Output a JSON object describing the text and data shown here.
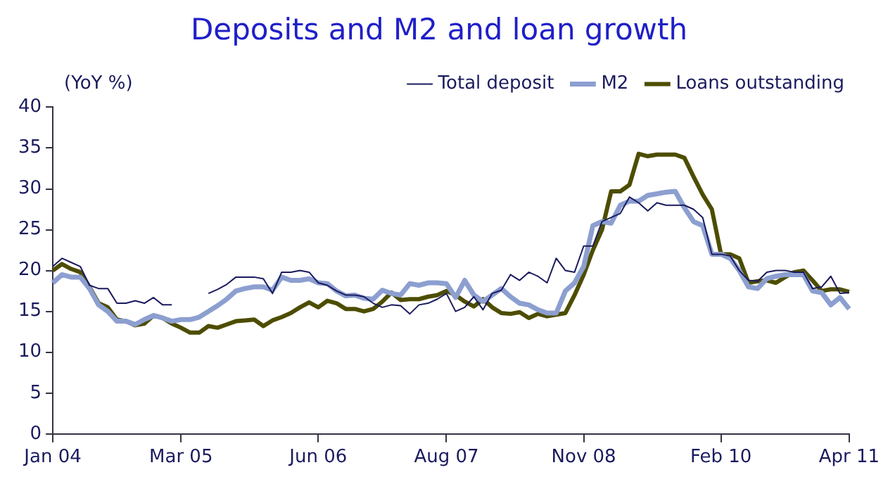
{
  "chart_data": {
    "type": "line",
    "title": "Deposits and M2 and loan growth",
    "ylabel": "(YoY %)",
    "categories": [
      "Jan 04",
      null,
      null,
      null,
      null,
      null,
      null,
      null,
      null,
      null,
      null,
      null,
      null,
      null,
      "Mar 05",
      null,
      null,
      null,
      null,
      null,
      null,
      null,
      null,
      null,
      null,
      null,
      null,
      null,
      null,
      "Jun 06",
      null,
      null,
      null,
      null,
      null,
      null,
      null,
      null,
      null,
      null,
      null,
      null,
      null,
      "Aug 07",
      null,
      null,
      null,
      null,
      null,
      null,
      null,
      null,
      null,
      null,
      null,
      null,
      null,
      null,
      "Nov 08",
      null,
      null,
      null,
      null,
      null,
      null,
      null,
      null,
      null,
      null,
      null,
      null,
      null,
      null,
      "Feb 10",
      null,
      null,
      null,
      null,
      null,
      null,
      null,
      null,
      null,
      null,
      null,
      null,
      null,
      "Apr 11"
    ],
    "series": [
      {
        "name": "Total deposit",
        "color": "#1a1a5e",
        "values": [
          20.5,
          21.5,
          21,
          20.5,
          18.2,
          17.8,
          17.8,
          16,
          16,
          16.3,
          16,
          16.7,
          15.8,
          15.8,
          null,
          null,
          null,
          17.2,
          17.7,
          18.3,
          19.2,
          19.2,
          19.2,
          19,
          17.2,
          19.8,
          19.8,
          20,
          19.8,
          18.5,
          18.2,
          17.5,
          17,
          17,
          16.8,
          16,
          15.5,
          15.8,
          15.7,
          14.7,
          15.8,
          16,
          16.5,
          17.2,
          15,
          15.5,
          16.8,
          15.2,
          17.2,
          17.6,
          19.5,
          18.8,
          19.8,
          19.3,
          18.5,
          21.5,
          20,
          19.8,
          23,
          23,
          26,
          26.5,
          27,
          29,
          28.3,
          27.3,
          28.3,
          28,
          28,
          28,
          27.5,
          26.5,
          22,
          22,
          21.8,
          20,
          18.8,
          18.7,
          19.8,
          20,
          20,
          19.8,
          19.8,
          17.8,
          18,
          19.3,
          17.2,
          17.3
        ]
      },
      {
        "name": "M2",
        "color": "#8c9fd0",
        "values": [
          18.5,
          19.5,
          19.2,
          19.2,
          17.8,
          15.8,
          15,
          13.8,
          13.8,
          13.4,
          14,
          14.5,
          14.2,
          13.8,
          14,
          14,
          14.3,
          15,
          15.7,
          16.5,
          17.5,
          17.8,
          18,
          18,
          17.6,
          19.2,
          18.8,
          18.8,
          19,
          18.5,
          18.4,
          17.5,
          16.9,
          17,
          16.6,
          16.5,
          17.6,
          17.2,
          17,
          18.4,
          18.2,
          18.5,
          18.5,
          18.4,
          16.7,
          18.8,
          17,
          16.2,
          17,
          17.8,
          16.8,
          16,
          15.8,
          15.2,
          14.8,
          14.8,
          17.5,
          18.5,
          20.5,
          25.5,
          26,
          25.8,
          28,
          28.5,
          28.5,
          29.2,
          29.4,
          29.6,
          29.7,
          27.7,
          26,
          25.5,
          22,
          22,
          21.5,
          20,
          18,
          17.8,
          19,
          19.3,
          19.5,
          19.5,
          19.5,
          17.5,
          17.3,
          15.8,
          16.7,
          15.3
        ]
      },
      {
        "name": "Loans outstanding",
        "color": "#4d4d00",
        "values": [
          20,
          20.8,
          20.2,
          19.8,
          18,
          16,
          15.5,
          14,
          13.8,
          13.3,
          13.5,
          14.5,
          14.2,
          13.5,
          13,
          12.4,
          12.4,
          13.2,
          13,
          13.4,
          13.8,
          13.9,
          14,
          13.2,
          13.9,
          14.3,
          14.8,
          15.5,
          16.1,
          15.5,
          16.3,
          16,
          15.3,
          15.3,
          15,
          15.3,
          16.2,
          17.3,
          16.4,
          16.5,
          16.5,
          16.8,
          17,
          17.5,
          17,
          16.2,
          15.6,
          16.5,
          15.5,
          14.8,
          14.7,
          14.9,
          14.2,
          14.7,
          14.4,
          14.6,
          14.8,
          17,
          19.5,
          22.5,
          25,
          29.7,
          29.7,
          30.5,
          34.3,
          34,
          34.2,
          34.2,
          34.2,
          33.8,
          31.5,
          29.3,
          27.5,
          22,
          22,
          21.5,
          18.5,
          18.7,
          18.8,
          18.5,
          19.2,
          19.8,
          20,
          18.8,
          17.5,
          17.7,
          17.7,
          17.4
        ]
      }
    ],
    "ylim": [
      0,
      40
    ],
    "yticks": [
      0,
      5,
      10,
      15,
      20,
      25,
      30,
      35,
      40
    ],
    "grid": false,
    "legend": "top",
    "marker": "none",
    "line_style": "solid"
  }
}
